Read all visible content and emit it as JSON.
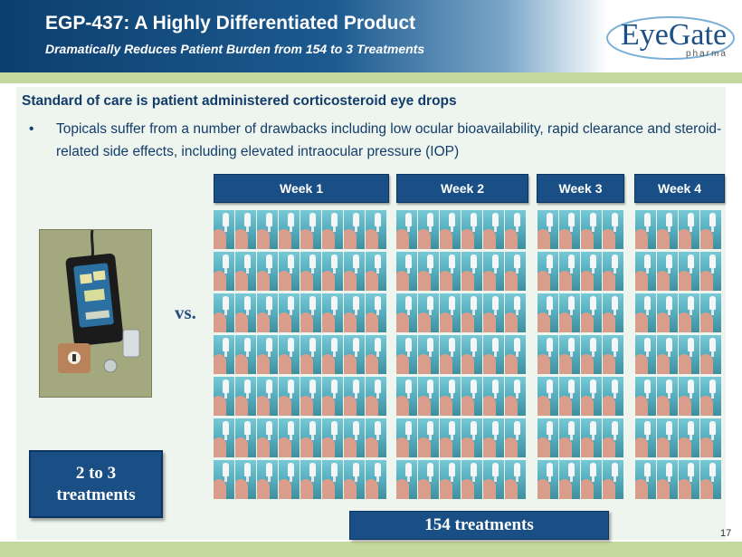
{
  "header": {
    "title": "EGP-437: A Highly Differentiated Product",
    "subtitle": "Dramatically Reduces Patient Burden from 154 to 3 Treatments"
  },
  "logo": {
    "name": "EyeGate",
    "sub": "pharma"
  },
  "body": {
    "heading": "Standard of care is patient administered corticosteroid eye drops",
    "bullet": "Topicals suffer from a number of drawbacks including low ocular bioavailability, rapid clearance and steroid-related side effects, including elevated intraocular pressure (IOP)"
  },
  "weeks": [
    "Week 1",
    "Week 2",
    "Week 3",
    "Week 4"
  ],
  "vs_label": "vs.",
  "device_badge": {
    "line1": "2 to 3",
    "line2": "treatments"
  },
  "drops_badge": "154 treatments",
  "page_number": "17",
  "colors": {
    "navy": "#1a4f86",
    "green_band": "#c4d99d",
    "content_bg": "#eef4ee"
  }
}
